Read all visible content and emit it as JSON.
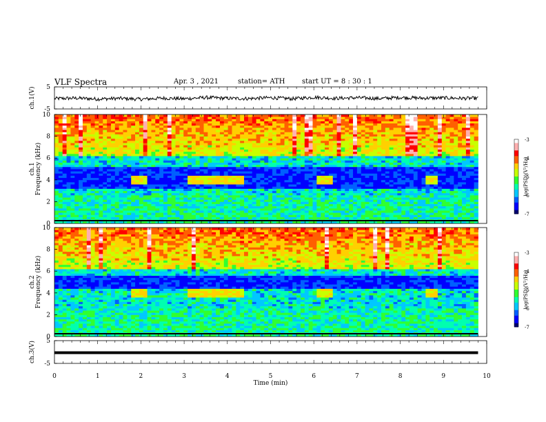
{
  "header": {
    "title": "VLF  Spectra",
    "date": "Apr. 3 , 2021",
    "station": "station= ATH",
    "start": "start  UT  =   8  : 30 : 1"
  },
  "colors": {
    "colormap": [
      "#000070",
      "#0000ff",
      "#0060ff",
      "#00c8ff",
      "#00ffb0",
      "#30ff30",
      "#c8ff00",
      "#ffd000",
      "#ff6000",
      "#ff0000",
      "#ffb0b0",
      "#ffffff"
    ],
    "waveform": "#000000"
  },
  "chart_data": [
    {
      "type": "line",
      "panel": "ch1-waveform",
      "ylabel": "ch.1(V)",
      "ylim": [
        -5,
        5
      ],
      "y_ticks": [
        "5",
        "-5"
      ],
      "x": [
        0,
        0.5,
        1,
        1.5,
        2,
        2.5,
        3,
        3.5,
        4,
        4.5,
        5,
        5.5,
        6,
        6.5,
        7,
        7.5,
        8,
        8.5,
        9,
        9.5,
        9.8
      ],
      "values": [
        -0.3,
        -0.1,
        -0.5,
        -0.2,
        -0.6,
        -0.1,
        -0.4,
        0.2,
        -0.2,
        -0.3,
        0.1,
        -0.4,
        0.3,
        -0.2,
        0.1,
        -0.3,
        0.2,
        -0.1,
        0.0,
        -0.2,
        -0.1
      ],
      "xlim": [
        0,
        10
      ]
    },
    {
      "type": "heatmap",
      "panel": "ch1-spectrogram",
      "ylabel": "ch.1\nFrequency  (kHz)",
      "y_ticks": [
        "0",
        "2",
        "4",
        "6",
        "8",
        "10"
      ],
      "ylim": [
        0,
        10
      ],
      "xlim": [
        0,
        10
      ],
      "colorbar": {
        "label": "log(PSD)(V²/Hz)",
        "ticks": [
          "-3",
          "-4",
          "-5",
          "-6",
          "-7"
        ],
        "range": [
          -7,
          -3
        ]
      },
      "enhancements_4khz": [
        [
          1.75,
          2.1
        ],
        [
          3.1,
          4.35
        ],
        [
          6.1,
          6.45
        ],
        [
          8.55,
          8.9
        ]
      ],
      "dark_band_khz": [
        3.2,
        5.2
      ]
    },
    {
      "type": "heatmap",
      "panel": "ch2-spectrogram",
      "ylabel": "ch.2\nFrequency  (kHz)",
      "y_ticks": [
        "0",
        "2",
        "4",
        "6",
        "8",
        "10"
      ],
      "ylim": [
        0,
        10
      ],
      "xlim": [
        0,
        10
      ],
      "colorbar": {
        "label": "log(PSD)(V²/Hz)",
        "ticks": [
          "-3",
          "-4",
          "-5",
          "-6",
          "-7"
        ],
        "range": [
          -7,
          -3
        ]
      },
      "enhancements_4khz": [
        [
          1.75,
          2.1
        ],
        [
          3.1,
          4.35
        ],
        [
          6.1,
          6.45
        ],
        [
          8.55,
          8.9
        ]
      ],
      "dark_band_khz": [
        4.4,
        5.6
      ]
    },
    {
      "type": "line",
      "panel": "ch3-waveform",
      "ylabel": "ch.3(V)",
      "ylim": [
        -5,
        5
      ],
      "y_ticks": [
        "5",
        "-5"
      ],
      "x": [
        0,
        9.8
      ],
      "values": [
        -0.3,
        -0.3
      ],
      "xlim": [
        0,
        10
      ],
      "xlabel": "Time  (min)",
      "x_ticks": [
        "0",
        "1",
        "2",
        "3",
        "4",
        "5",
        "6",
        "7",
        "8",
        "9",
        "10"
      ]
    }
  ]
}
